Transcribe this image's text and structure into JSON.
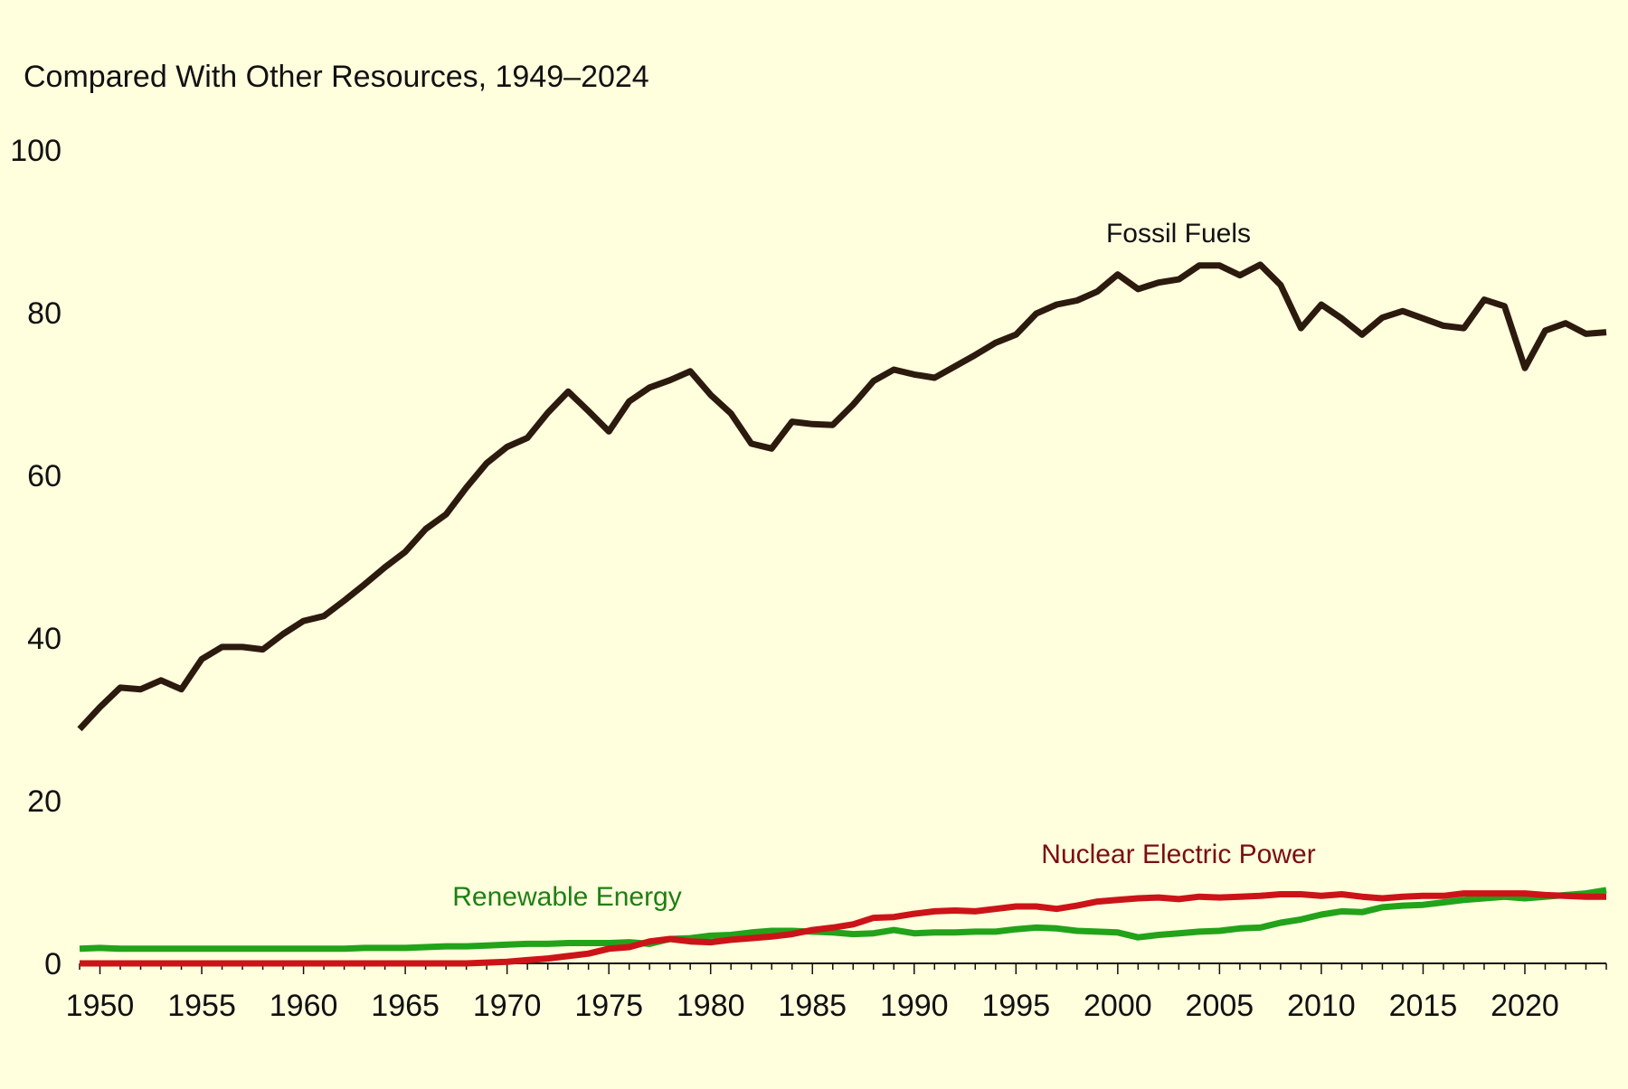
{
  "chart_data": {
    "type": "line",
    "subtitle": "Compared With Other Resources, 1949–2024",
    "xlabel": "",
    "ylabel": "",
    "xlim": [
      1949,
      2024
    ],
    "ylim": [
      0,
      100
    ],
    "y_ticks": [
      "0",
      "20",
      "40",
      "60",
      "80",
      "100"
    ],
    "x_ticks": [
      "1950",
      "1955",
      "1960",
      "1965",
      "1970",
      "1975",
      "1980",
      "1985",
      "1990",
      "1995",
      "2000",
      "2005",
      "2010",
      "2015",
      "2020"
    ],
    "grid": false,
    "legend": "none",
    "annotations": [
      {
        "text": "Fossil Fuels",
        "series": "Fossil Fuels"
      },
      {
        "text": "Nuclear Electric Power",
        "series": "Nuclear Electric Power"
      },
      {
        "text": "Renewable Energy",
        "series": "Renewable Energy"
      }
    ],
    "x": [
      1949,
      1950,
      1951,
      1952,
      1953,
      1954,
      1955,
      1956,
      1957,
      1958,
      1959,
      1960,
      1961,
      1962,
      1963,
      1964,
      1965,
      1966,
      1967,
      1968,
      1969,
      1970,
      1971,
      1972,
      1973,
      1974,
      1975,
      1976,
      1977,
      1978,
      1979,
      1980,
      1981,
      1982,
      1983,
      1984,
      1985,
      1986,
      1987,
      1988,
      1989,
      1990,
      1991,
      1992,
      1993,
      1994,
      1995,
      1996,
      1997,
      1998,
      1999,
      2000,
      2001,
      2002,
      2003,
      2004,
      2005,
      2006,
      2007,
      2008,
      2009,
      2010,
      2011,
      2012,
      2013,
      2014,
      2015,
      2016,
      2017,
      2018,
      2019,
      2020,
      2021,
      2022,
      2023,
      2024
    ],
    "series": [
      {
        "name": "Fossil Fuels",
        "color": "#2b1a0d",
        "values": [
          28.8,
          31.5,
          33.9,
          33.7,
          34.8,
          33.7,
          37.4,
          38.9,
          38.9,
          38.6,
          40.5,
          42.1,
          42.7,
          44.6,
          46.6,
          48.7,
          50.6,
          53.4,
          55.2,
          58.5,
          61.5,
          63.5,
          64.6,
          67.7,
          70.3,
          67.9,
          65.4,
          69.1,
          70.8,
          71.7,
          72.8,
          69.9,
          67.6,
          63.9,
          63.3,
          66.6,
          66.3,
          66.2,
          68.7,
          71.6,
          73.0,
          72.4,
          72.0,
          73.4,
          74.8,
          76.3,
          77.3,
          79.9,
          81.0,
          81.5,
          82.6,
          84.7,
          82.9,
          83.7,
          84.1,
          85.8,
          85.8,
          84.6,
          85.9,
          83.4,
          78.1,
          81.0,
          79.3,
          77.3,
          79.4,
          80.2,
          79.3,
          78.4,
          78.1,
          81.6,
          80.8,
          73.2,
          77.8,
          78.7,
          77.4,
          77.6
        ]
      },
      {
        "name": "Nuclear Electric Power",
        "color": "#cc1418",
        "values": [
          0,
          0,
          0,
          0,
          0,
          0,
          0,
          0,
          0,
          0,
          0,
          0,
          0,
          0,
          0,
          0,
          0,
          0,
          0,
          0,
          0.1,
          0.2,
          0.4,
          0.6,
          0.9,
          1.2,
          1.8,
          2.0,
          2.7,
          3.0,
          2.7,
          2.6,
          2.9,
          3.1,
          3.3,
          3.6,
          4.1,
          4.4,
          4.8,
          5.6,
          5.7,
          6.1,
          6.4,
          6.5,
          6.4,
          6.7,
          7.0,
          7.0,
          6.7,
          7.1,
          7.6,
          7.8,
          8.0,
          8.1,
          7.9,
          8.2,
          8.1,
          8.2,
          8.3,
          8.5,
          8.5,
          8.3,
          8.5,
          8.2,
          8.0,
          8.2,
          8.3,
          8.3,
          8.6,
          8.6,
          8.6,
          8.6,
          8.4,
          8.3,
          8.2,
          8.2
        ]
      },
      {
        "name": "Renewable Energy",
        "color": "#22a31a",
        "values": [
          1.8,
          1.9,
          1.8,
          1.8,
          1.8,
          1.8,
          1.8,
          1.8,
          1.8,
          1.8,
          1.8,
          1.8,
          1.8,
          1.8,
          1.9,
          1.9,
          1.9,
          2.0,
          2.1,
          2.1,
          2.2,
          2.3,
          2.4,
          2.4,
          2.5,
          2.5,
          2.5,
          2.6,
          2.4,
          3.0,
          3.1,
          3.4,
          3.5,
          3.8,
          4.0,
          4.0,
          3.9,
          3.8,
          3.6,
          3.7,
          4.1,
          3.7,
          3.8,
          3.8,
          3.9,
          3.9,
          4.2,
          4.4,
          4.3,
          4.0,
          3.9,
          3.8,
          3.2,
          3.5,
          3.7,
          3.9,
          4.0,
          4.3,
          4.4,
          5.0,
          5.4,
          6.0,
          6.4,
          6.3,
          6.9,
          7.1,
          7.2,
          7.5,
          7.8,
          8.0,
          8.2,
          8.0,
          8.2,
          8.4,
          8.6,
          9.0
        ]
      }
    ]
  }
}
